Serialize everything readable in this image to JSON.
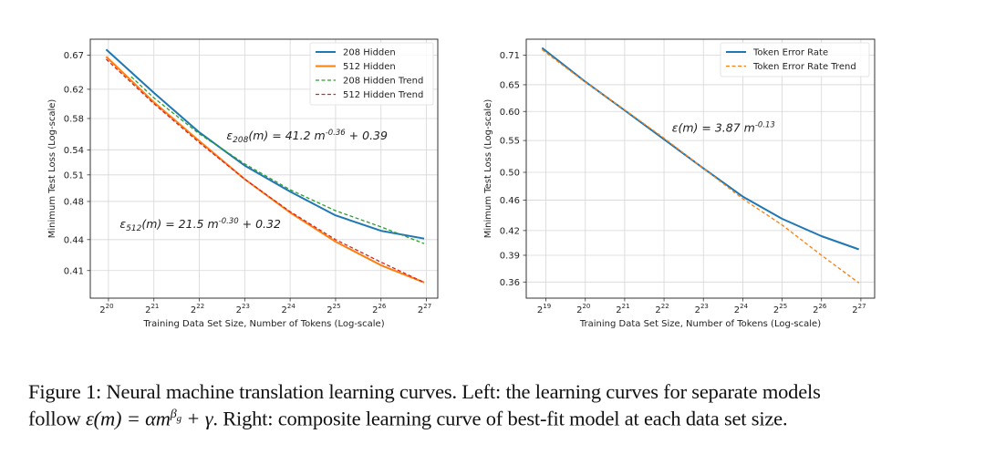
{
  "chart_data": [
    {
      "type": "line",
      "xscale": "log2",
      "yscale": "log",
      "grid": true,
      "legend_placement": "top-right",
      "xlabel": "Training Data Set Size, Number of Tokens (Log-scale)",
      "ylabel": "Minimum Test Loss (Log-scale)",
      "x_tick_exponents": [
        20,
        21,
        22,
        23,
        24,
        25,
        26,
        27
      ],
      "y_ticks": [
        "0.67",
        "0.62",
        "0.58",
        "0.54",
        "0.51",
        "0.48",
        "0.44",
        "0.41"
      ],
      "xlim_exponent": [
        19.6,
        27.25
      ],
      "ylim": [
        0.385,
        0.695
      ],
      "series": [
        {
          "name": "208 Hidden",
          "color": "#1f77b4",
          "style": "solid",
          "x_exponent": [
            19.95,
            21,
            22,
            23,
            24,
            25,
            26,
            26.95
          ],
          "y": [
            0.679,
            0.615,
            0.562,
            0.521,
            0.491,
            0.465,
            0.449,
            0.441
          ]
        },
        {
          "name": "512 Hidden",
          "color": "#ff7f0e",
          "style": "solid",
          "x_exponent": [
            19.95,
            21,
            22,
            23,
            24,
            25,
            26,
            26.95
          ],
          "y": [
            0.668,
            0.602,
            0.551,
            0.505,
            0.468,
            0.438,
            0.415,
            0.399
          ]
        },
        {
          "name": "208 Hidden Trend",
          "color": "#2ca02c",
          "style": "dashed",
          "x_exponent": [
            20.5,
            21,
            22,
            23,
            24,
            25,
            26,
            26.95
          ],
          "y": [
            0.638,
            0.608,
            0.56,
            0.523,
            0.493,
            0.47,
            0.453,
            0.436
          ]
        },
        {
          "name": "512 Hidden Trend",
          "color": "#d62728",
          "style": "dashed",
          "x_exponent": [
            19.95,
            21,
            22,
            23,
            24,
            25,
            26,
            26.95
          ],
          "y": [
            0.664,
            0.6,
            0.549,
            0.505,
            0.469,
            0.44,
            0.418,
            0.399
          ]
        }
      ],
      "annotations": [
        {
          "symbol": "ε",
          "sub": "208",
          "text": "(m) = 41.2 m",
          "sup": "-0.36",
          "tail": " + 0.39",
          "at_exponent": 22.6,
          "at_y": 0.553
        },
        {
          "symbol": "ε",
          "sub": "512",
          "text": "(m) = 21.5 m",
          "sup": "-0.30",
          "tail": " + 0.32",
          "at_exponent": 20.25,
          "at_y": 0.452
        }
      ]
    },
    {
      "type": "line",
      "xscale": "log2",
      "yscale": "log",
      "grid": true,
      "legend_placement": "top-right",
      "xlabel": "Training Data Set Size, Number of Tokens (Log-scale)",
      "ylabel": "Minimum Test Loss (Log-scale)",
      "x_tick_exponents": [
        19,
        20,
        21,
        22,
        23,
        24,
        25,
        26,
        27
      ],
      "y_ticks": [
        "0.71",
        "0.65",
        "0.60",
        "0.55",
        "0.50",
        "0.46",
        "0.42",
        "0.39",
        "0.36"
      ],
      "xlim_exponent": [
        18.5,
        27.35
      ],
      "ylim": [
        0.343,
        0.745
      ],
      "series": [
        {
          "name": "Token Error Rate",
          "color": "#1f77b4",
          "style": "solid",
          "x_exponent": [
            18.9,
            20,
            21,
            22,
            23,
            24,
            25,
            26,
            26.95
          ],
          "y": [
            0.726,
            0.656,
            0.602,
            0.552,
            0.506,
            0.465,
            0.435,
            0.413,
            0.397
          ]
        },
        {
          "name": "Token Error Rate Trend",
          "color": "#ff7f0e",
          "style": "dashed",
          "x_exponent": [
            18.9,
            20,
            21,
            22,
            23,
            24,
            25,
            26,
            26.95
          ],
          "y": [
            0.722,
            0.655,
            0.603,
            0.554,
            0.506,
            0.462,
            0.427,
            0.39,
            0.359
          ]
        }
      ],
      "annotations": [
        {
          "symbol": "ε",
          "sub": "",
          "text": "(m) = 3.87 m",
          "sup": "-0.13",
          "tail": "",
          "at_exponent": 22.2,
          "at_y": 0.565
        }
      ]
    }
  ],
  "caption": {
    "line1": "Figure 1: Neural machine translation learning curves. Left: the learning curves for separate models",
    "line2_a": "follow ",
    "line2_math1": "ε(m) = αm",
    "line2_sup": "β",
    "line2_sub": "g",
    "line2_math2": " + γ",
    "line2_b": ". Right: composite learning curve of best-fit model at each data set size."
  }
}
